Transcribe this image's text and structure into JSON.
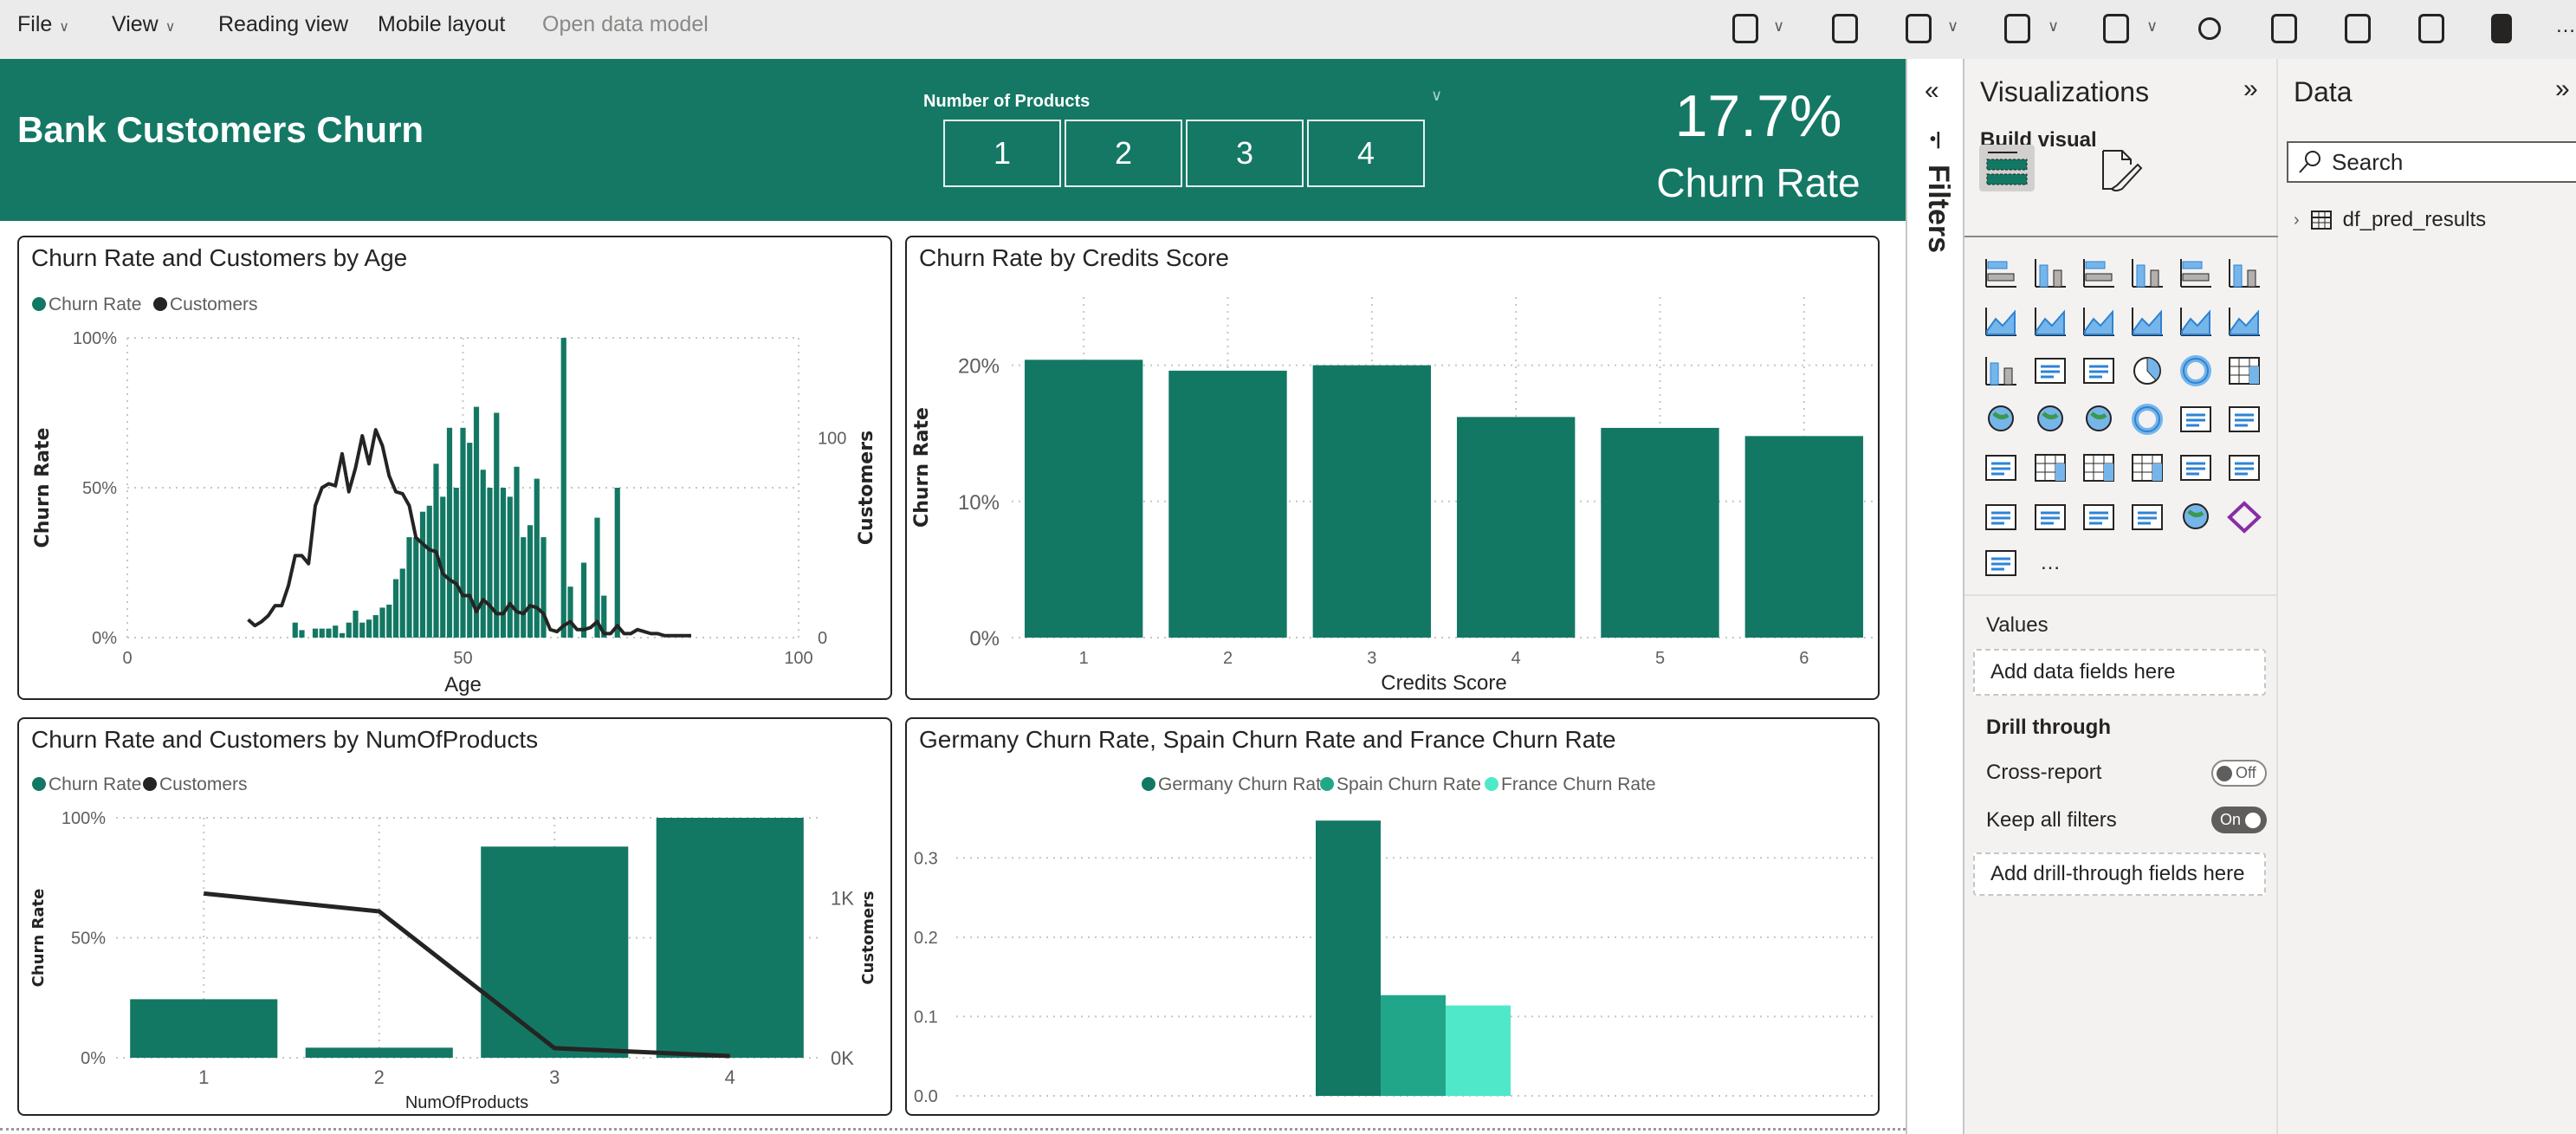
{
  "toolbar": {
    "menus": [
      "File",
      "View",
      "Reading view",
      "Mobile layout",
      "Open data model"
    ],
    "icons": [
      "personalize-visuals-icon",
      "notes-icon",
      "bookmarks-icon",
      "comment-icon",
      "view-icon",
      "refresh-icon",
      "copy-icon",
      "save-icon",
      "pin-icon",
      "teams-icon",
      "more-options-icon"
    ]
  },
  "header": {
    "title": "Bank Customers Churn",
    "slicer": {
      "label": "Number of Products",
      "options": [
        "1",
        "2",
        "3",
        "4"
      ]
    },
    "kpi": {
      "value": "17.7%",
      "label": "Churn Rate"
    }
  },
  "filters_pane": {
    "label": "Filters"
  },
  "visualizations": {
    "title": "Visualizations",
    "build_visual": "Build visual",
    "visual_types": [
      "stacked-bar-chart",
      "stacked-column-chart",
      "clustered-bar-chart",
      "clustered-column-chart",
      "100-stacked-bar-chart",
      "100-stacked-column-chart",
      "line-chart",
      "area-chart",
      "stacked-area-chart",
      "line-and-stacked-column-chart",
      "line-and-clustered-column-chart",
      "ribbon-chart",
      "waterfall-chart",
      "funnel-chart",
      "scatter-chart",
      "pie-chart",
      "donut-chart",
      "treemap",
      "map",
      "filled-map",
      "azure-map",
      "gauge",
      "card",
      "multi-row-card",
      "kpi",
      "slicer",
      "table",
      "matrix",
      "key-influencers",
      "decomposition-tree",
      "qa",
      "smart-narrative",
      "goals",
      "paginated-report",
      "arcgis-map",
      "power-apps",
      "power-automate",
      "more-visuals"
    ],
    "values_label": "Values",
    "values_placeholder": "Add data fields here",
    "drill_through": "Drill through",
    "cross_report": {
      "label": "Cross-report",
      "state": "Off"
    },
    "keep_all_filters": {
      "label": "Keep all filters",
      "state": "On"
    },
    "drill_placeholder": "Add drill-through fields here"
  },
  "data_pane": {
    "title": "Data",
    "search_placeholder": "Search",
    "tables": [
      "df_pred_results"
    ]
  },
  "colors": {
    "brand": "#147864",
    "bar": "#137863",
    "line": "#252423",
    "spain": "#22a68a",
    "france": "#4fe8c8"
  },
  "chart_data": [
    {
      "type": "bar+line",
      "title": "Churn Rate and Customers by Age",
      "legend": [
        "Churn Rate",
        "Customers"
      ],
      "legend_position": "top-left",
      "xlabel": "Age",
      "ylabel": "Churn Rate",
      "y2label": "Customers",
      "xlim": [
        0,
        100
      ],
      "ylim": [
        0,
        100
      ],
      "y2lim": [
        0,
        150
      ],
      "x_ticks": [
        "0",
        "50",
        "100"
      ],
      "x_tick_values": [
        0,
        50,
        100
      ],
      "y_ticks": [
        "0%",
        "50%",
        "100%"
      ],
      "y_tick_values": [
        0,
        50,
        100
      ],
      "y2_ticks": [
        "0",
        "100"
      ],
      "y2_tick_values": [
        0,
        100
      ],
      "grid": true,
      "churn_rate": {
        "x": [
          25,
          26,
          28,
          29,
          30,
          31,
          32,
          33,
          34,
          35,
          36,
          37,
          38,
          39,
          40,
          41,
          42,
          43,
          44,
          45,
          46,
          47,
          48,
          49,
          50,
          51,
          52,
          53,
          54,
          55,
          56,
          57,
          58,
          59,
          60,
          61,
          62,
          65,
          66,
          68,
          70,
          71,
          73
        ],
        "y": [
          5,
          2.5,
          3,
          3,
          3,
          4,
          1.5,
          5,
          9,
          5,
          6,
          7.5,
          10,
          11,
          19.5,
          23,
          33.5,
          33.5,
          42,
          44,
          58,
          47,
          70,
          50,
          70,
          65,
          77,
          56,
          50,
          75,
          50,
          47,
          57,
          33.5,
          37.5,
          53,
          33.5,
          100,
          17,
          25,
          40,
          14,
          50
        ]
      },
      "customers": {
        "x": [
          18,
          19,
          20,
          21,
          22,
          23,
          24,
          25,
          26,
          27,
          28,
          29,
          30,
          31,
          32,
          33,
          34,
          35,
          36,
          37,
          38,
          39,
          40,
          41,
          42,
          43,
          44,
          45,
          46,
          47,
          48,
          49,
          50,
          51,
          52,
          53,
          54,
          55,
          56,
          57,
          58,
          59,
          60,
          61,
          62,
          63,
          64,
          65,
          66,
          67,
          68,
          69,
          70,
          71,
          72,
          73,
          74,
          75,
          76,
          77,
          78,
          79,
          80,
          81,
          82,
          83,
          84
        ],
        "y": [
          9,
          6,
          8,
          11,
          16,
          16,
          26,
          41,
          41,
          37,
          66,
          75,
          77,
          76,
          92,
          73,
          85,
          101,
          87,
          104,
          96,
          81,
          73,
          72,
          66,
          50,
          47,
          44,
          43,
          32,
          29,
          27,
          21,
          21,
          13,
          19,
          16,
          12,
          12,
          17,
          13,
          12,
          16,
          15,
          12,
          4,
          3,
          6,
          8,
          4,
          4,
          5,
          8,
          2,
          2,
          6,
          2,
          2,
          4,
          3,
          2,
          2,
          1,
          1,
          1,
          1,
          1
        ]
      }
    },
    {
      "type": "bar",
      "title": "Churn Rate by Credits Score",
      "xlabel": "Credits Score",
      "ylabel": "Churn Rate",
      "categories": [
        "1",
        "2",
        "3",
        "4",
        "5",
        "6"
      ],
      "values": [
        20.4,
        19.6,
        20.0,
        16.2,
        15.4,
        14.8
      ],
      "ylim": [
        0,
        25
      ],
      "y_ticks": [
        "0%",
        "10%",
        "20%"
      ],
      "y_tick_values": [
        0,
        10,
        20
      ],
      "grid": true
    },
    {
      "type": "bar+line",
      "title": "Churn Rate and Customers by NumOfProducts",
      "legend": [
        "Churn Rate",
        "Customers"
      ],
      "legend_position": "top-left",
      "xlabel": "NumOfProducts",
      "ylabel": "Churn Rate",
      "y2label": "Customers",
      "categories": [
        "1",
        "2",
        "3",
        "4"
      ],
      "churn_rate": [
        24.4,
        4.2,
        88,
        100
      ],
      "customers": [
        1027,
        915,
        60,
        11
      ],
      "ylim": [
        0,
        100
      ],
      "y2lim": [
        0,
        1500
      ],
      "y_ticks": [
        "0%",
        "50%",
        "100%"
      ],
      "y_tick_values": [
        0,
        50,
        100
      ],
      "y2_ticks": [
        "0K",
        "1K"
      ],
      "y2_tick_values": [
        0,
        1000
      ],
      "grid": true
    },
    {
      "type": "bar",
      "title": "Germany Churn Rate, Spain Churn Rate and France Churn Rate",
      "legend_position": "top-center",
      "series": [
        {
          "name": "Germany Churn Rate",
          "values": [
            0.347
          ],
          "color": "#137863"
        },
        {
          "name": "Spain Churn Rate",
          "values": [
            0.127
          ],
          "color": "#22a68a"
        },
        {
          "name": "France Churn Rate",
          "values": [
            0.114
          ],
          "color": "#4fe8c8"
        }
      ],
      "ylim": [
        0,
        0.38
      ],
      "y_ticks": [
        "0.0",
        "0.1",
        "0.2",
        "0.3"
      ],
      "y_tick_values": [
        0,
        0.1,
        0.2,
        0.3
      ],
      "grid": true
    }
  ]
}
